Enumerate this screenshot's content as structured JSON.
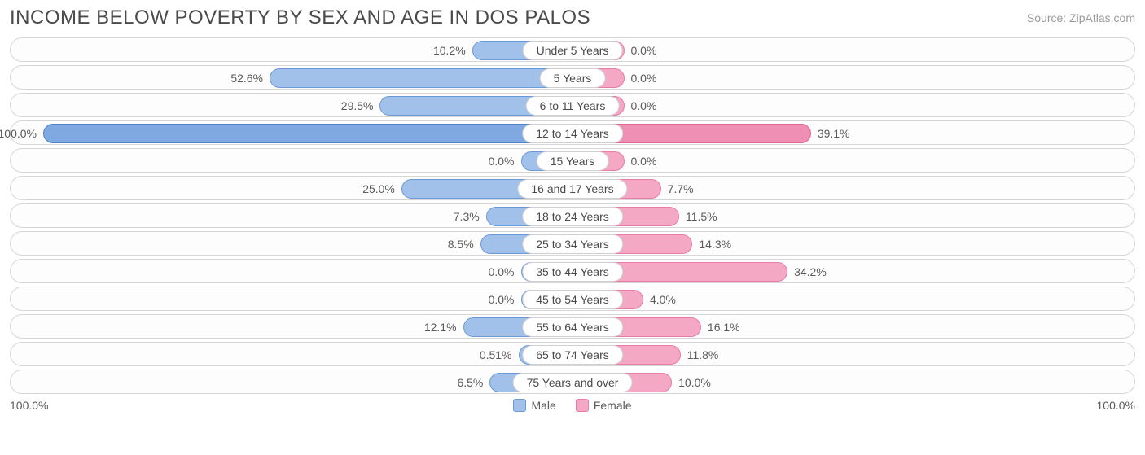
{
  "title": "INCOME BELOW POVERTY BY SEX AND AGE IN DOS PALOS",
  "source": "Source: ZipAtlas.com",
  "axis_max_pct": 100.0,
  "axis_label_left": "100.0%",
  "axis_label_right": "100.0%",
  "bar_min_display_pct": 15.0,
  "colors": {
    "male_fill": "#a2c1ea",
    "male_border": "#6b99d6",
    "male_hl_fill": "#7fa9e0",
    "male_hl_border": "#4f82cc",
    "female_fill": "#f4a8c4",
    "female_border": "#ea7ba6",
    "female_hl_fill": "#ef8fb3",
    "female_hl_border": "#e4638f",
    "track_border": "#d6d6d6",
    "track_bg": "#fdfdfd",
    "label_text": "#5a5a5a",
    "title_text": "#4a4a4a",
    "source_text": "#9a9a9a"
  },
  "legend": {
    "male": "Male",
    "female": "Female"
  },
  "rows": [
    {
      "category": "Under 5 Years",
      "male": 10.2,
      "male_label": "10.2%",
      "female": 0.0,
      "female_label": "0.0%",
      "highlight": false
    },
    {
      "category": "5 Years",
      "male": 52.6,
      "male_label": "52.6%",
      "female": 0.0,
      "female_label": "0.0%",
      "highlight": false
    },
    {
      "category": "6 to 11 Years",
      "male": 29.5,
      "male_label": "29.5%",
      "female": 0.0,
      "female_label": "0.0%",
      "highlight": false
    },
    {
      "category": "12 to 14 Years",
      "male": 100.0,
      "male_label": "100.0%",
      "female": 39.1,
      "female_label": "39.1%",
      "highlight": true
    },
    {
      "category": "15 Years",
      "male": 0.0,
      "male_label": "0.0%",
      "female": 0.0,
      "female_label": "0.0%",
      "highlight": false
    },
    {
      "category": "16 and 17 Years",
      "male": 25.0,
      "male_label": "25.0%",
      "female": 7.7,
      "female_label": "7.7%",
      "highlight": false
    },
    {
      "category": "18 to 24 Years",
      "male": 7.3,
      "male_label": "7.3%",
      "female": 11.5,
      "female_label": "11.5%",
      "highlight": false
    },
    {
      "category": "25 to 34 Years",
      "male": 8.5,
      "male_label": "8.5%",
      "female": 14.3,
      "female_label": "14.3%",
      "highlight": false
    },
    {
      "category": "35 to 44 Years",
      "male": 0.0,
      "male_label": "0.0%",
      "female": 34.2,
      "female_label": "34.2%",
      "highlight": false
    },
    {
      "category": "45 to 54 Years",
      "male": 0.0,
      "male_label": "0.0%",
      "female": 4.0,
      "female_label": "4.0%",
      "highlight": false
    },
    {
      "category": "55 to 64 Years",
      "male": 12.1,
      "male_label": "12.1%",
      "female": 16.1,
      "female_label": "16.1%",
      "highlight": false
    },
    {
      "category": "65 to 74 Years",
      "male": 0.51,
      "male_label": "0.51%",
      "female": 11.8,
      "female_label": "11.8%",
      "highlight": false
    },
    {
      "category": "75 Years and over",
      "male": 6.5,
      "male_label": "6.5%",
      "female": 10.0,
      "female_label": "10.0%",
      "highlight": false
    }
  ]
}
